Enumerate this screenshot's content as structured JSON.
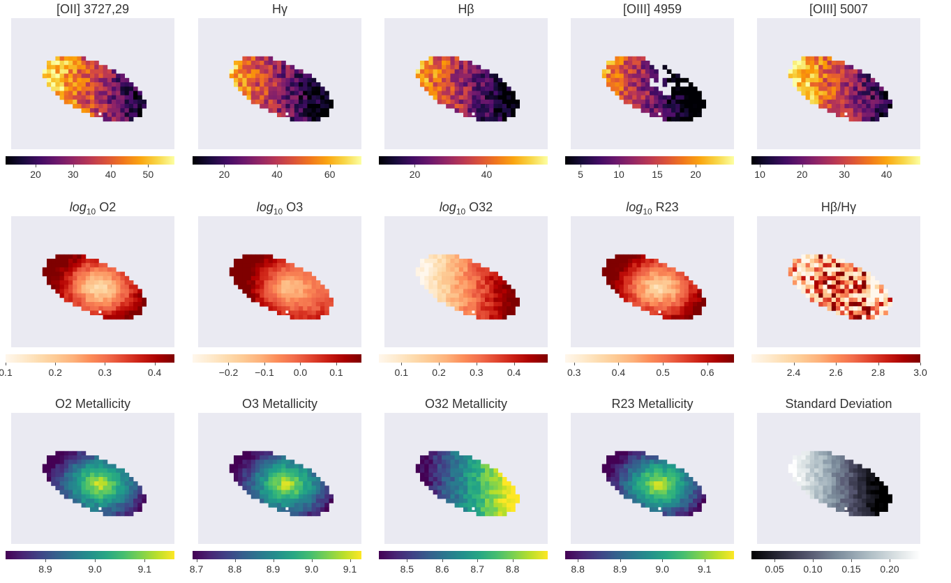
{
  "figure": {
    "background": "#ffffff",
    "axes_background": "#eaeaf2"
  },
  "chart_data": [
    {
      "type": "heatmap",
      "title": "[OII] 3727,29",
      "cmap": "inferno",
      "range": [
        12,
        57
      ],
      "ticks": [
        "20",
        "30",
        "40",
        "50"
      ],
      "tick_values": [
        20,
        30,
        40,
        50
      ],
      "pattern": "blob_left_bright"
    },
    {
      "type": "heatmap",
      "title": "Hγ",
      "cmap": "inferno",
      "range": [
        8,
        72
      ],
      "ticks": [
        "20",
        "40",
        "60"
      ],
      "tick_values": [
        20,
        40,
        60
      ],
      "pattern": "blob_left_mid"
    },
    {
      "type": "heatmap",
      "title": "Hβ",
      "cmap": "inferno",
      "range": [
        10,
        57
      ],
      "ticks": [
        "20",
        "40"
      ],
      "tick_values": [
        20,
        40
      ],
      "pattern": "blob_left_mid"
    },
    {
      "type": "heatmap",
      "title": "[OIII] 4959",
      "cmap": "inferno",
      "range": [
        3,
        25
      ],
      "ticks": [
        "5",
        "10",
        "15",
        "20"
      ],
      "tick_values": [
        5,
        10,
        15,
        20
      ],
      "pattern": "blob_left_holes"
    },
    {
      "type": "heatmap",
      "title": "[OIII] 5007",
      "cmap": "inferno",
      "range": [
        8,
        48
      ],
      "ticks": [
        "10",
        "20",
        "30",
        "40"
      ],
      "tick_values": [
        10,
        20,
        30,
        40
      ],
      "pattern": "blob_left_bright"
    },
    {
      "type": "heatmap",
      "title_prefix": "log",
      "title_sub": "10",
      "title_suffix": " O2",
      "cmap": "orrd",
      "range": [
        0.1,
        0.44
      ],
      "ticks": [
        "0.1",
        "0.2",
        "0.3",
        "0.4"
      ],
      "tick_values": [
        0.1,
        0.2,
        0.3,
        0.4
      ],
      "pattern": "center_low"
    },
    {
      "type": "heatmap",
      "title_prefix": "log",
      "title_sub": "10",
      "title_suffix": " O3",
      "cmap": "orrd",
      "range": [
        -0.3,
        0.17
      ],
      "ticks": [
        "−0.2",
        "−0.1",
        "0.0",
        "0.1"
      ],
      "tick_values": [
        -0.2,
        -0.1,
        0.0,
        0.1
      ],
      "pattern": "center_low_left_high"
    },
    {
      "type": "heatmap",
      "title_prefix": "log",
      "title_sub": "10",
      "title_suffix": " O32",
      "cmap": "orrd",
      "range": [
        0.04,
        0.49
      ],
      "ticks": [
        "0.1",
        "0.2",
        "0.3",
        "0.4"
      ],
      "tick_values": [
        0.1,
        0.2,
        0.3,
        0.4
      ],
      "pattern": "left_low_right_high"
    },
    {
      "type": "heatmap",
      "title_prefix": "log",
      "title_sub": "10",
      "title_suffix": " R23",
      "cmap": "orrd",
      "range": [
        0.28,
        0.66
      ],
      "ticks": [
        "0.3",
        "0.4",
        "0.5",
        "0.6"
      ],
      "tick_values": [
        0.3,
        0.4,
        0.5,
        0.6
      ],
      "pattern": "center_low"
    },
    {
      "type": "heatmap",
      "title": "Hβ/Hγ",
      "cmap": "orrd",
      "range": [
        2.2,
        3.0
      ],
      "ticks": [
        "2.4",
        "2.6",
        "2.8",
        "3.0"
      ],
      "tick_values": [
        2.4,
        2.6,
        2.8,
        3.0
      ],
      "pattern": "noisy"
    },
    {
      "type": "heatmap",
      "title": "O2 Metallicity",
      "cmap": "viridis",
      "range": [
        8.82,
        9.16
      ],
      "ticks": [
        "8.9",
        "9.0",
        "9.1"
      ],
      "tick_values": [
        8.9,
        9.0,
        9.1
      ],
      "pattern": "center_high"
    },
    {
      "type": "heatmap",
      "title": "O3 Metallicity",
      "cmap": "viridis",
      "range": [
        8.69,
        9.13
      ],
      "ticks": [
        "8.7",
        "8.8",
        "8.9",
        "9.0",
        "9.1"
      ],
      "tick_values": [
        8.7,
        8.8,
        8.9,
        9.0,
        9.1
      ],
      "pattern": "center_high"
    },
    {
      "type": "heatmap",
      "title": "O32 Metallicity",
      "cmap": "viridis",
      "range": [
        8.42,
        8.9
      ],
      "ticks": [
        "8.5",
        "8.6",
        "8.7",
        "8.8"
      ],
      "tick_values": [
        8.5,
        8.6,
        8.7,
        8.8
      ],
      "pattern": "left_low_right_high"
    },
    {
      "type": "heatmap",
      "title": "R23 Metallicity",
      "cmap": "viridis",
      "range": [
        8.77,
        9.17
      ],
      "ticks": [
        "8.8",
        "8.9",
        "9.0",
        "9.1"
      ],
      "tick_values": [
        8.8,
        8.9,
        9.0,
        9.1
      ],
      "pattern": "center_high"
    },
    {
      "type": "heatmap",
      "title": "Standard Deviation",
      "cmap": "bone",
      "range": [
        0.02,
        0.24
      ],
      "ticks": [
        "0.05",
        "0.10",
        "0.15",
        "0.20"
      ],
      "tick_values": [
        0.05,
        0.1,
        0.15,
        0.2
      ],
      "pattern": "left_high"
    }
  ]
}
